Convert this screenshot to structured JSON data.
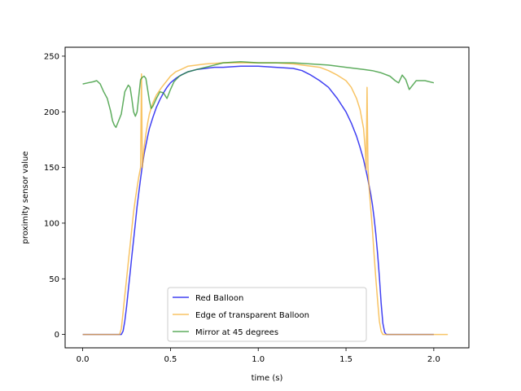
{
  "chart_data": {
    "type": "line",
    "title": "",
    "xlabel": "time (s)",
    "ylabel": "proximity sensor value",
    "xlim": [
      -0.1,
      2.2
    ],
    "ylim": [
      -12,
      258
    ],
    "xticks": [
      0.0,
      0.5,
      1.0,
      1.5,
      2.0
    ],
    "xtick_labels": [
      "0.0",
      "0.5",
      "1.0",
      "1.5",
      "2.0"
    ],
    "yticks": [
      0,
      50,
      100,
      150,
      200,
      250
    ],
    "ytick_labels": [
      "0",
      "50",
      "100",
      "150",
      "200",
      "250"
    ],
    "grid": false,
    "legend_position": "lower-center",
    "series": [
      {
        "name": "Red Balloon",
        "color": "#0000ee",
        "x": [
          0.0,
          0.22,
          0.23,
          0.24,
          0.25,
          0.26,
          0.27,
          0.28,
          0.29,
          0.3,
          0.31,
          0.32,
          0.33,
          0.34,
          0.35,
          0.36,
          0.37,
          0.38,
          0.4,
          0.42,
          0.44,
          0.46,
          0.48,
          0.5,
          0.53,
          0.56,
          0.6,
          0.65,
          0.7,
          0.75,
          0.8,
          0.9,
          1.0,
          1.1,
          1.2,
          1.25,
          1.3,
          1.35,
          1.4,
          1.45,
          1.5,
          1.53,
          1.56,
          1.58,
          1.6,
          1.62,
          1.64,
          1.65,
          1.66,
          1.67,
          1.68,
          1.69,
          1.7,
          1.71,
          1.72,
          1.73,
          2.0
        ],
        "values": [
          0,
          0,
          3,
          12,
          25,
          40,
          55,
          70,
          85,
          100,
          115,
          128,
          140,
          152,
          162,
          170,
          178,
          185,
          195,
          204,
          211,
          217,
          222,
          226,
          230,
          233,
          236,
          238,
          239,
          240,
          240,
          241,
          241,
          240,
          239,
          237,
          233,
          228,
          222,
          212,
          200,
          190,
          178,
          168,
          157,
          143,
          127,
          117,
          105,
          90,
          72,
          52,
          28,
          10,
          2,
          0,
          0
        ]
      },
      {
        "name": "Edge of transparent Balloon",
        "color": "#f5b031",
        "x": [
          0.0,
          0.21,
          0.22,
          0.23,
          0.24,
          0.25,
          0.26,
          0.27,
          0.28,
          0.29,
          0.3,
          0.31,
          0.32,
          0.33,
          0.335,
          0.34,
          0.35,
          0.36,
          0.37,
          0.38,
          0.4,
          0.42,
          0.45,
          0.48,
          0.5,
          0.53,
          0.56,
          0.6,
          0.65,
          0.7,
          0.8,
          0.9,
          1.0,
          1.1,
          1.2,
          1.3,
          1.35,
          1.4,
          1.45,
          1.5,
          1.53,
          1.56,
          1.58,
          1.6,
          1.61,
          1.615,
          1.62,
          1.625,
          1.63,
          1.64,
          1.65,
          1.66,
          1.67,
          1.68,
          1.69,
          1.7,
          1.71,
          1.72,
          2.08
        ],
        "values": [
          0,
          0,
          5,
          20,
          35,
          50,
          65,
          80,
          95,
          110,
          122,
          132,
          142,
          150,
          234,
          150,
          168,
          180,
          190,
          198,
          208,
          215,
          222,
          228,
          232,
          236,
          238,
          241,
          242,
          243,
          244,
          244,
          244,
          244,
          243,
          241,
          240,
          237,
          233,
          228,
          222,
          212,
          202,
          185,
          165,
          148,
          222,
          150,
          135,
          115,
          95,
          72,
          50,
          30,
          12,
          3,
          0,
          0,
          0
        ]
      },
      {
        "name": "Mirror at 45 degrees",
        "color": "#2a922a",
        "x": [
          0.0,
          0.03,
          0.06,
          0.08,
          0.1,
          0.12,
          0.14,
          0.16,
          0.17,
          0.18,
          0.19,
          0.2,
          0.22,
          0.24,
          0.26,
          0.27,
          0.28,
          0.29,
          0.3,
          0.31,
          0.32,
          0.33,
          0.34,
          0.35,
          0.36,
          0.38,
          0.39,
          0.4,
          0.42,
          0.44,
          0.46,
          0.48,
          0.5,
          0.52,
          0.55,
          0.6,
          0.65,
          0.7,
          0.8,
          0.9,
          1.0,
          1.1,
          1.2,
          1.3,
          1.4,
          1.5,
          1.6,
          1.65,
          1.7,
          1.75,
          1.78,
          1.8,
          1.82,
          1.84,
          1.86,
          1.9,
          1.95,
          2.0
        ],
        "values": [
          225,
          226,
          227,
          228,
          225,
          218,
          212,
          200,
          192,
          188,
          186,
          190,
          198,
          218,
          224,
          222,
          212,
          200,
          196,
          200,
          215,
          229,
          231,
          232,
          230,
          210,
          203,
          205,
          212,
          218,
          217,
          212,
          220,
          227,
          232,
          236,
          238,
          240,
          244,
          245,
          244,
          244,
          244,
          243,
          242,
          240,
          238,
          237,
          235,
          232,
          228,
          226,
          233,
          229,
          220,
          228,
          228,
          226
        ]
      }
    ]
  }
}
